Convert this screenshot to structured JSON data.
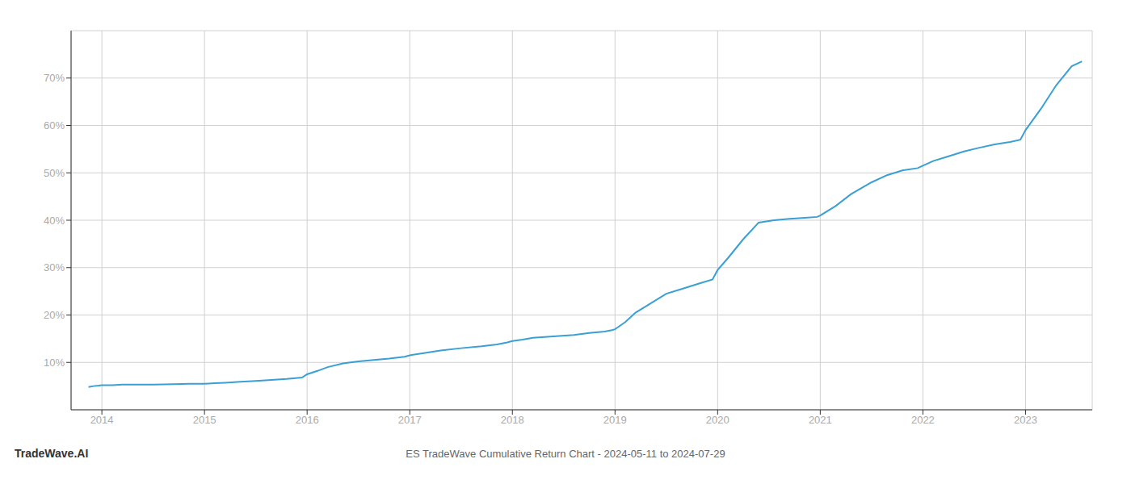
{
  "chart_data": {
    "type": "line",
    "title": "ES TradeWave Cumulative Return Chart - 2024-05-11 to 2024-07-29",
    "annotations": [
      "TradeWave.AI"
    ],
    "color": "#3a9fd4",
    "grid": true,
    "x": [
      2013.87,
      2013.92,
      2013.97,
      2014.0,
      2014.1,
      2014.2,
      2014.3,
      2014.5,
      2014.7,
      2014.85,
      2014.95,
      2015.0,
      2015.1,
      2015.2,
      2015.35,
      2015.5,
      2015.65,
      2015.8,
      2015.95,
      2016.0,
      2016.1,
      2016.2,
      2016.35,
      2016.5,
      2016.65,
      2016.8,
      2016.95,
      2017.0,
      2017.15,
      2017.3,
      2017.5,
      2017.7,
      2017.85,
      2017.95,
      2018.0,
      2018.1,
      2018.2,
      2018.4,
      2018.6,
      2018.75,
      2018.9,
      2018.97,
      2019.0,
      2019.1,
      2019.2,
      2019.35,
      2019.5,
      2019.65,
      2019.8,
      2019.95,
      2020.0,
      2020.1,
      2020.25,
      2020.4,
      2020.55,
      2020.7,
      2020.85,
      2020.97,
      2021.0,
      2021.15,
      2021.3,
      2021.5,
      2021.65,
      2021.8,
      2021.95,
      2022.0,
      2022.1,
      2022.25,
      2022.4,
      2022.55,
      2022.7,
      2022.85,
      2022.95,
      2023.0,
      2023.15,
      2023.3,
      2023.45,
      2023.55
    ],
    "values": [
      4.8,
      5.0,
      5.1,
      5.2,
      5.2,
      5.3,
      5.3,
      5.3,
      5.4,
      5.5,
      5.5,
      5.5,
      5.6,
      5.7,
      5.9,
      6.1,
      6.3,
      6.5,
      6.8,
      7.5,
      8.2,
      9.0,
      9.8,
      10.2,
      10.5,
      10.8,
      11.2,
      11.5,
      12.0,
      12.5,
      13.0,
      13.4,
      13.8,
      14.2,
      14.5,
      14.8,
      15.2,
      15.5,
      15.8,
      16.2,
      16.5,
      16.8,
      17.0,
      18.5,
      20.5,
      22.5,
      24.5,
      25.5,
      26.5,
      27.5,
      29.5,
      32.0,
      36.0,
      39.5,
      40.0,
      40.3,
      40.5,
      40.7,
      41.0,
      43.0,
      45.5,
      48.0,
      49.5,
      50.5,
      51.0,
      51.5,
      52.5,
      53.5,
      54.5,
      55.3,
      56.0,
      56.5,
      57.0,
      59.0,
      63.5,
      68.5,
      72.5,
      73.5
    ],
    "xlim": [
      2013.7,
      2023.65
    ],
    "ylim": [
      0,
      80
    ],
    "xticks": [
      2014,
      2015,
      2016,
      2017,
      2018,
      2019,
      2020,
      2021,
      2022,
      2023
    ],
    "yticks": [
      {
        "value": 10,
        "label": "10%"
      },
      {
        "value": 20,
        "label": "20%"
      },
      {
        "value": 30,
        "label": "30%"
      },
      {
        "value": 40,
        "label": "40%"
      },
      {
        "value": 50,
        "label": "50%"
      },
      {
        "value": 60,
        "label": "60%"
      },
      {
        "value": 70,
        "label": "70%"
      }
    ]
  }
}
